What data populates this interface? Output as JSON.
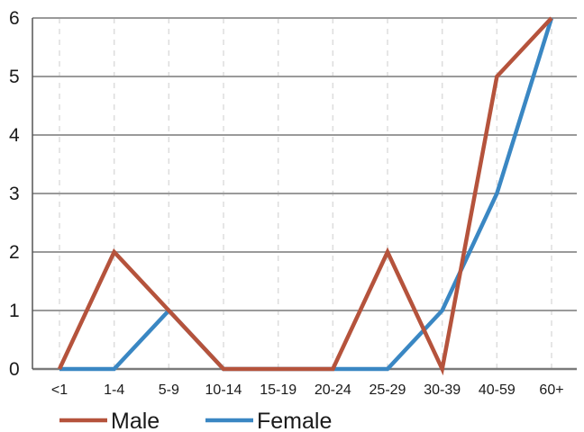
{
  "chart_data": {
    "type": "line",
    "categories": [
      "<1",
      "1-4",
      "5-9",
      "10-14",
      "15-19",
      "20-24",
      "25-29",
      "30-39",
      "40-59",
      "60+"
    ],
    "series": [
      {
        "name": "Male",
        "values": [
          0,
          2,
          1,
          0,
          0,
          0,
          2,
          0,
          5,
          6
        ],
        "color": "#b5533c"
      },
      {
        "name": "Female",
        "values": [
          0,
          0,
          1,
          0,
          0,
          0,
          0,
          1,
          3,
          6
        ],
        "color": "#3a87c3"
      }
    ],
    "yticks": [
      "0",
      "1",
      "2",
      "3",
      "4",
      "5",
      "6"
    ],
    "ylim": [
      0,
      6
    ],
    "title": "",
    "xlabel": "",
    "ylabel": "",
    "grid": "horizontal solid, vertical dashed",
    "legend_position": "bottom-left"
  }
}
